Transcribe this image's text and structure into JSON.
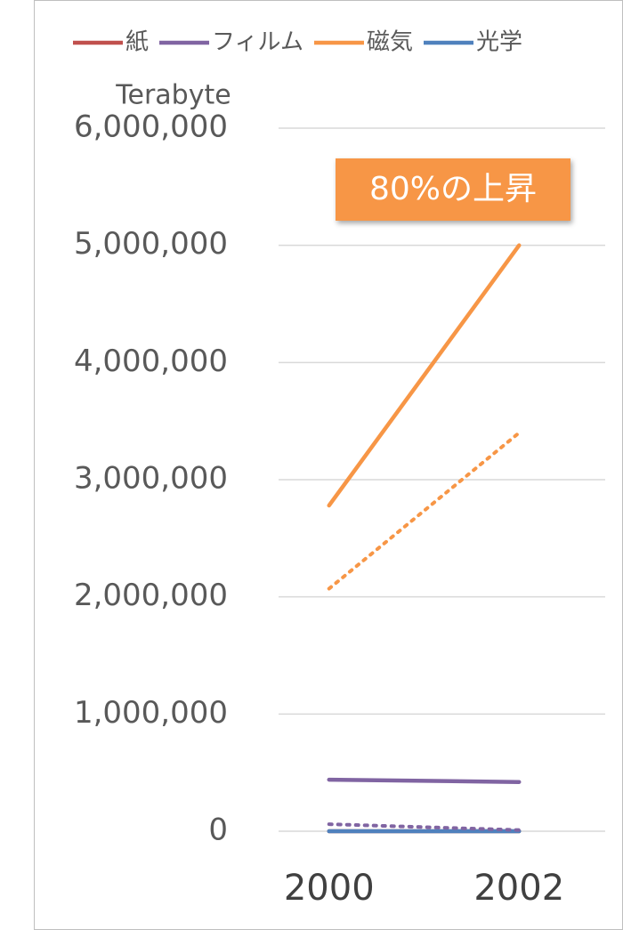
{
  "chart_data": {
    "type": "line",
    "y_axis_label": "Terabyte",
    "annotation": "80%の上昇",
    "annotation_color": "#f79646",
    "categories": [
      "2000",
      "2002"
    ],
    "series": [
      {
        "name": "紙",
        "color": "#c0504d",
        "style": "solid",
        "values": [
          0,
          0
        ]
      },
      {
        "name": "フィルム",
        "color": "#8064a2",
        "style": "solid",
        "values": [
          440000,
          420000
        ]
      },
      {
        "name": "磁気",
        "color": "#f79646",
        "style": "solid",
        "values": [
          2780000,
          5000000
        ]
      },
      {
        "name": "光学",
        "color": "#4f81bd",
        "style": "solid",
        "values": [
          0,
          0
        ]
      },
      {
        "color": "#f79646",
        "style": "dotted",
        "values": [
          2070000,
          3400000
        ]
      },
      {
        "color": "#8064a2",
        "style": "dotted",
        "values": [
          60000,
          10000
        ]
      }
    ],
    "ylim": [
      0,
      6000000
    ],
    "yticks": [
      0,
      {
        "value": 1000000,
        "label": "1,000,000"
      },
      {
        "value": 2000000,
        "label": "2,000,000"
      },
      {
        "value": 3000000,
        "label": "3,000,000"
      },
      {
        "value": 4000000,
        "label": "4,000,000"
      },
      {
        "value": 5000000,
        "label": "5,000,000"
      },
      {
        "value": 6000000,
        "label": "6,000,000"
      }
    ],
    "grid": true,
    "legend": "top"
  }
}
